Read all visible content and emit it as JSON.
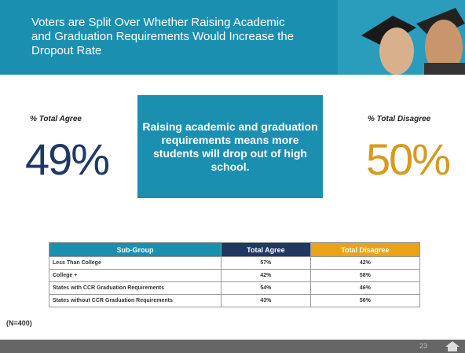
{
  "header": {
    "title": "Voters are Split Over Whether Raising Academic and Graduation Requirements Would Increase the Dropout Rate"
  },
  "agree": {
    "label": "% Total Agree",
    "value": "49%"
  },
  "disagree": {
    "label": "% Total Disagree",
    "value": "50%"
  },
  "statement": "Raising academic and graduation requirements means more students will drop out of high school.",
  "table": {
    "columns": [
      "Sub-Group",
      "Total Agree",
      "Total Disagree"
    ],
    "rows": [
      [
        "Less Than College",
        "57%",
        "42%"
      ],
      [
        "College +",
        "42%",
        "58%"
      ],
      [
        "States with CCR Graduation Requirements",
        "54%",
        "46%"
      ],
      [
        "States without CCR Graduation Requirements",
        "43%",
        "56%"
      ]
    ]
  },
  "note": "(N=400)",
  "page_number": "23"
}
